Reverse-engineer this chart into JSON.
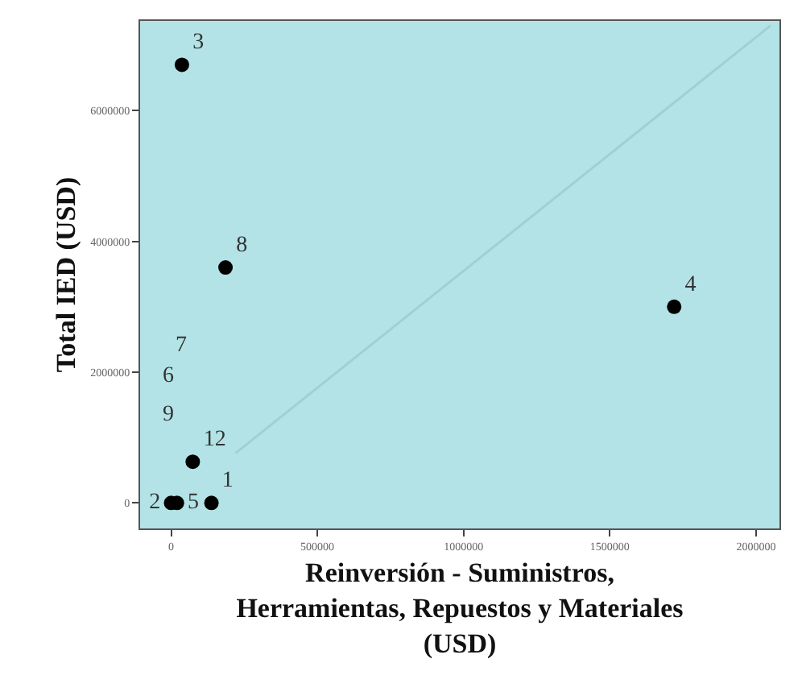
{
  "chart_data": {
    "type": "scatter",
    "xlabel": "Reinversión - Suministros,\nHerramientas, Repuestos y Materiales\n(USD)",
    "ylabel": "Total IED (USD)",
    "xlim": [
      -106000,
      2080000
    ],
    "ylim": [
      -390000,
      7370000
    ],
    "xticks": [
      0,
      500000,
      1000000,
      1500000,
      2000000
    ],
    "yticks": [
      0,
      2000000,
      4000000,
      6000000
    ],
    "grid": false,
    "legend": false,
    "marker": "circle",
    "series": [
      {
        "name": "12",
        "color": "#000000",
        "x": [
          74000
        ],
        "values": [
          630000
        ]
      },
      {
        "name": "1",
        "color": "#000000",
        "x": [
          138000
        ],
        "values": [
          0
        ]
      },
      {
        "name": "2",
        "color": "#000000",
        "x": [
          0
        ],
        "values": [
          0
        ]
      },
      {
        "name": "3",
        "color": "#000000",
        "x": [
          37000
        ],
        "values": [
          6700000
        ]
      },
      {
        "name": "4",
        "color": "#000000",
        "x": [
          1720000
        ],
        "values": [
          3000000
        ]
      },
      {
        "name": "5",
        "color": "#000000",
        "x": [
          20000
        ],
        "values": [
          0
        ]
      },
      {
        "name": "8",
        "color": "#000000",
        "x": [
          186000
        ],
        "values": [
          3600000
        ]
      },
      {
        "type": "line",
        "color": "#9fd0d3",
        "marker": "none",
        "x": [
          220000,
          2050000
        ],
        "values": [
          760000,
          7300000
        ]
      }
    ],
    "annotations": [
      "6",
      "7",
      "9"
    ]
  }
}
